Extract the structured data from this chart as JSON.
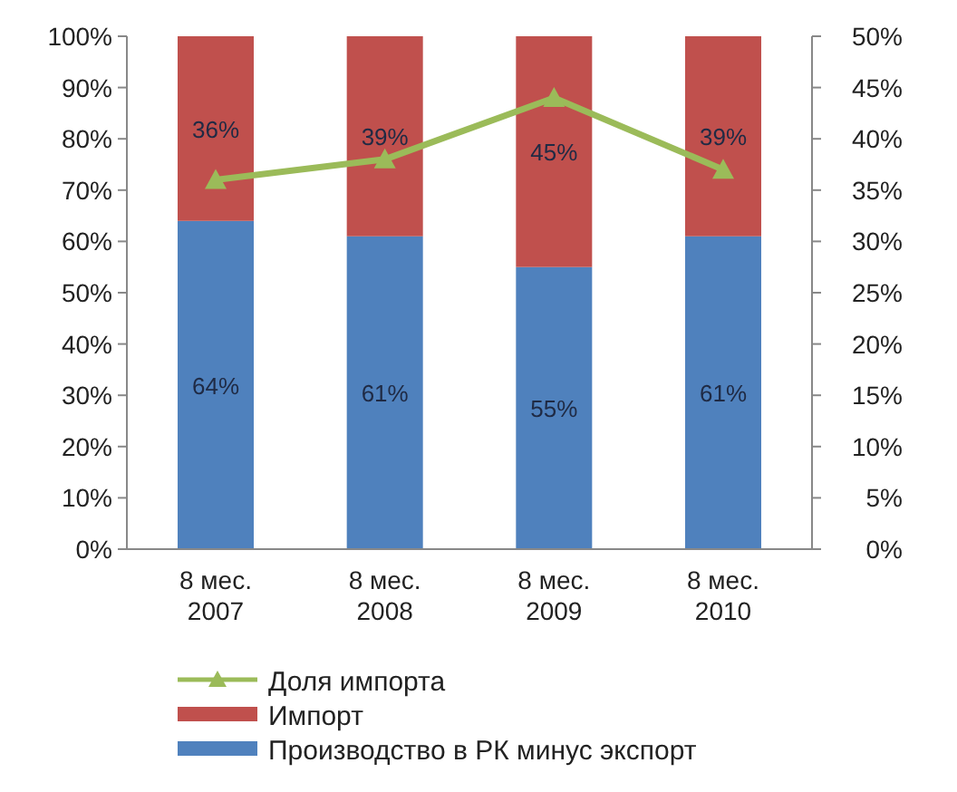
{
  "chart_data": {
    "type": "bar",
    "stacked": true,
    "categories": [
      "8 мес. 2007",
      "8 мес. 2008",
      "8 мес. 2009",
      "8 мес. 2010"
    ],
    "series": [
      {
        "name": "Производство в РК минус экспорт",
        "color": "#4f81bd",
        "values": [
          64,
          61,
          55,
          61
        ],
        "value_labels": [
          "64%",
          "61%",
          "55%",
          "61%"
        ]
      },
      {
        "name": "Импорт",
        "color": "#c0504d",
        "values": [
          36,
          39,
          45,
          39
        ],
        "value_labels": [
          "36%",
          "39%",
          "45%",
          "39%"
        ]
      },
      {
        "name": "Доля импорта",
        "type": "line",
        "axis": "y2",
        "color": "#9bbb59",
        "marker": "triangle",
        "values": [
          36,
          38,
          44,
          37
        ]
      }
    ],
    "ylim": [
      0,
      100
    ],
    "yticks": [
      {
        "value": 0,
        "label": "0%"
      },
      {
        "value": 10,
        "label": "10%"
      },
      {
        "value": 20,
        "label": "20%"
      },
      {
        "value": 30,
        "label": "30%"
      },
      {
        "value": 40,
        "label": "40%"
      },
      {
        "value": 50,
        "label": "50%"
      },
      {
        "value": 60,
        "label": "60%"
      },
      {
        "value": 70,
        "label": "70%"
      },
      {
        "value": 80,
        "label": "80%"
      },
      {
        "value": 90,
        "label": "90%"
      },
      {
        "value": 100,
        "label": "100%"
      }
    ],
    "y2lim": [
      0,
      50
    ],
    "y2ticks": [
      {
        "value": 0,
        "label": "0%"
      },
      {
        "value": 5,
        "label": "5%"
      },
      {
        "value": 10,
        "label": "10%"
      },
      {
        "value": 15,
        "label": "15%"
      },
      {
        "value": 20,
        "label": "20%"
      },
      {
        "value": 25,
        "label": "25%"
      },
      {
        "value": 30,
        "label": "30%"
      },
      {
        "value": 35,
        "label": "35%"
      },
      {
        "value": 40,
        "label": "40%"
      },
      {
        "value": 45,
        "label": "45%"
      },
      {
        "value": 50,
        "label": "50%"
      }
    ],
    "legend": "bottom",
    "grid": false
  }
}
